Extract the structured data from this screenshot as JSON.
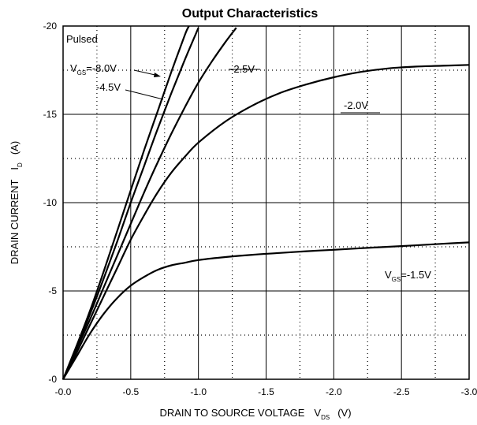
{
  "chart_data": {
    "type": "line",
    "title": "Output Characteristics",
    "xlabel": {
      "main": "DRAIN TO SOURCE VOLTAGE",
      "symbol": "V",
      "sub": "DS",
      "unit": "(V)"
    },
    "ylabel": {
      "main": "DRAIN CURRENT",
      "symbol": "I",
      "sub": "D",
      "unit": "(A)"
    },
    "xlim": [
      0,
      -3.0
    ],
    "ylim": [
      0,
      -20
    ],
    "x_ticks": [
      "-0.0",
      "-0.5",
      "-1.0",
      "-1.5",
      "-2.0",
      "-2.5",
      "-3.0"
    ],
    "y_ticks": [
      "-0",
      "-5",
      "-10",
      "-15",
      "-20"
    ],
    "grid": {
      "major": "solid",
      "minor": "dotted"
    },
    "annotation": "Pulsed",
    "series": [
      {
        "name": "VGS=-8.0V",
        "x": [
          0,
          -0.1,
          -0.2,
          -0.3,
          -0.4,
          -0.5,
          -0.6,
          -0.7,
          -0.8,
          -0.9,
          -0.93
        ],
        "y": [
          0,
          -1.9,
          -3.9,
          -6.1,
          -8.4,
          -10.7,
          -13.0,
          -15.2,
          -17.4,
          -19.5,
          -20.0
        ]
      },
      {
        "name": "-4.5V",
        "x": [
          0,
          -0.1,
          -0.2,
          -0.3,
          -0.4,
          -0.5,
          -0.6,
          -0.7,
          -0.8,
          -0.9,
          -1.0
        ],
        "y": [
          0,
          -1.8,
          -3.7,
          -5.7,
          -7.8,
          -10.0,
          -12.1,
          -14.2,
          -16.2,
          -18.1,
          -19.9
        ]
      },
      {
        "name": "-2.5V",
        "x": [
          0,
          -0.1,
          -0.2,
          -0.3,
          -0.4,
          -0.5,
          -0.6,
          -0.7,
          -0.8,
          -0.9,
          -1.0,
          -1.1,
          -1.2,
          -1.28
        ],
        "y": [
          0,
          -1.7,
          -3.4,
          -5.2,
          -7.0,
          -8.8,
          -10.6,
          -12.3,
          -13.9,
          -15.4,
          -16.8,
          -18.0,
          -19.1,
          -19.9
        ]
      },
      {
        "name": "-2.0V",
        "x": [
          0,
          -0.1,
          -0.2,
          -0.3,
          -0.4,
          -0.5,
          -0.6,
          -0.7,
          -0.8,
          -0.9,
          -1.0,
          -1.2,
          -1.4,
          -1.6,
          -1.8,
          -2.0,
          -2.2,
          -2.4,
          -2.6,
          -2.8,
          -3.0
        ],
        "y": [
          0,
          -1.5,
          -3.1,
          -4.7,
          -6.3,
          -7.9,
          -9.3,
          -10.6,
          -11.7,
          -12.6,
          -13.4,
          -14.6,
          -15.5,
          -16.2,
          -16.7,
          -17.1,
          -17.4,
          -17.6,
          -17.7,
          -17.75,
          -17.8
        ]
      },
      {
        "name": "VGS=-1.5V",
        "x": [
          0,
          -0.1,
          -0.2,
          -0.3,
          -0.4,
          -0.5,
          -0.6,
          -0.7,
          -0.8,
          -0.9,
          -1.0,
          -1.2,
          -1.4,
          -1.6,
          -1.8,
          -2.0,
          -2.2,
          -2.4,
          -2.6,
          -2.8,
          -3.0
        ],
        "y": [
          0,
          -1.3,
          -2.6,
          -3.7,
          -4.6,
          -5.3,
          -5.8,
          -6.2,
          -6.45,
          -6.6,
          -6.75,
          -6.92,
          -7.05,
          -7.15,
          -7.25,
          -7.33,
          -7.42,
          -7.5,
          -7.58,
          -7.67,
          -7.75
        ]
      }
    ],
    "labels": {
      "vgs_prefix": "V",
      "vgs_sub": "GS",
      "s8": "=-8.0V",
      "s45": "-4.5V",
      "s25": "-2.5V",
      "s20": "-2.0V",
      "s15": "=-1.5V"
    }
  }
}
